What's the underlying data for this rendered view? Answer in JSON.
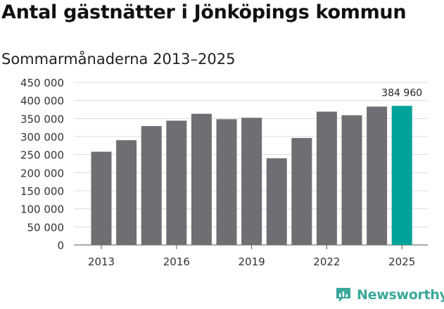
{
  "title": "Antal gästnätter i Jönköpings kommun",
  "subtitle": "Sommarmånaderna 2013–2025",
  "brand": {
    "name": "Newsworthy",
    "icon": "newsworthy-logo-icon"
  },
  "colors": {
    "bar": "#6f6e73",
    "highlight": "#00a29a",
    "grid": "#dcdcdc",
    "text": "#333333"
  },
  "chart_data": {
    "type": "bar",
    "categories": [
      "2013",
      "2014",
      "2015",
      "2016",
      "2017",
      "2018",
      "2019",
      "2020",
      "2021",
      "2022",
      "2023",
      "2024",
      "2025"
    ],
    "values": [
      258000,
      290000,
      329000,
      344000,
      363000,
      348000,
      352000,
      240000,
      296000,
      369000,
      359000,
      383000,
      384960
    ],
    "highlight_index": 12,
    "annotations": [
      {
        "category": "2025",
        "text": "384 960"
      }
    ],
    "x_tick_labels": [
      "2013",
      "2016",
      "2019",
      "2022",
      "2025"
    ],
    "y_tick_labels": [
      "0",
      "50 000",
      "100 000",
      "150 000",
      "200 000",
      "250 000",
      "300 000",
      "350 000",
      "400 000",
      "450 000"
    ],
    "ylim": [
      0,
      450000
    ],
    "yticks": [
      0,
      50000,
      100000,
      150000,
      200000,
      250000,
      300000,
      350000,
      400000,
      450000
    ],
    "grid": true,
    "legend": "none"
  }
}
